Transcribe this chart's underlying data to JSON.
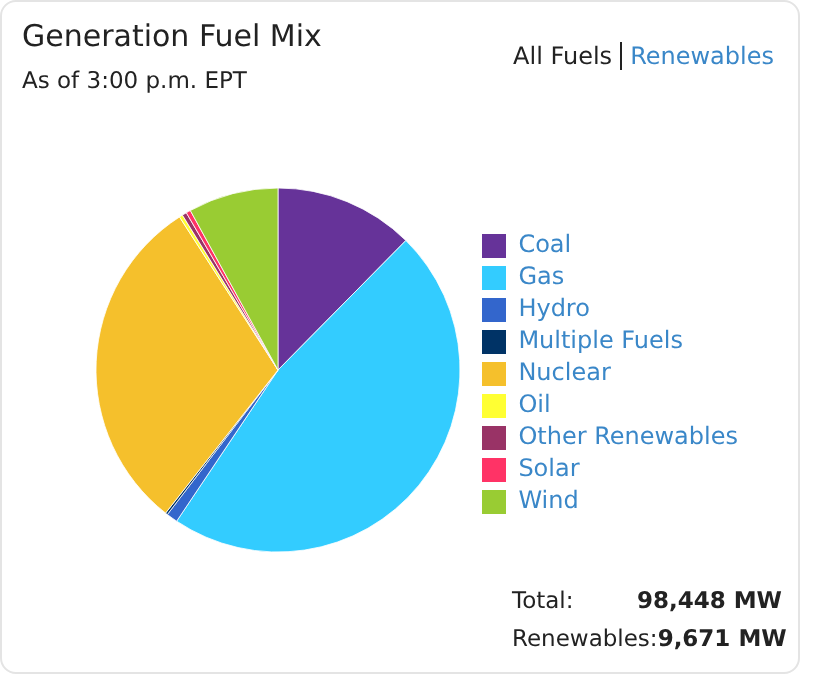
{
  "chart_data": {
    "type": "pie",
    "title": "Generation Fuel Mix",
    "subtitle": "As of 3:00 p.m. EPT",
    "categories": [
      "Coal",
      "Gas",
      "Hydro",
      "Multiple Fuels",
      "Nuclear",
      "Oil",
      "Other Renewables",
      "Solar",
      "Wind"
    ],
    "values": [
      12.4,
      47.0,
      1.0,
      0.2,
      30.3,
      0.3,
      0.4,
      0.4,
      8.0
    ],
    "colors": [
      "#663399",
      "#33ccff",
      "#3366cc",
      "#003366",
      "#f5c02c",
      "#ffff33",
      "#993366",
      "#ff3366",
      "#99cc33"
    ],
    "legend": "right",
    "annotations": [
      "All Fuels",
      "Renewables",
      "Total:",
      "98,448 MW",
      "Renewables:",
      "9,671 MW"
    ]
  }
}
